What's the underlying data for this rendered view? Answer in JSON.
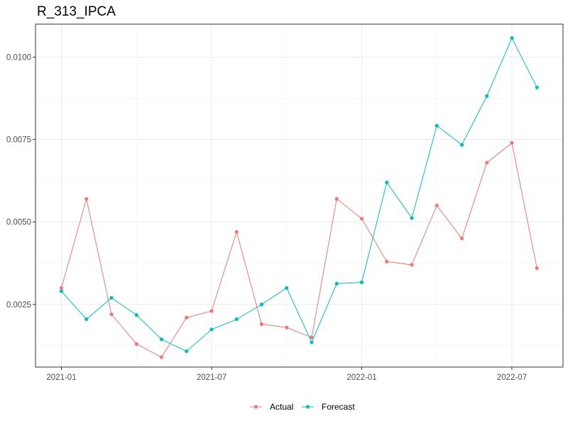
{
  "chart_data": {
    "type": "line",
    "title": "R_313_IPCA",
    "xlabel": "",
    "ylabel": "",
    "x": [
      "2021-01",
      "2021-02",
      "2021-03",
      "2021-04",
      "2021-05",
      "2021-06",
      "2021-07",
      "2021-08",
      "2021-09",
      "2021-10",
      "2021-11",
      "2021-12",
      "2022-01",
      "2022-02",
      "2022-03",
      "2022-04",
      "2022-05",
      "2022-06",
      "2022-07",
      "2022-08"
    ],
    "x_ticks": [
      "2021-01",
      "2021-07",
      "2022-01",
      "2022-07"
    ],
    "y_ticks": [
      0.0025,
      0.005,
      0.0075,
      0.01
    ],
    "y_tick_labels": [
      "0.0025",
      "0.0050",
      "0.0075",
      "0.0100"
    ],
    "ylim": [
      0.0006,
      0.011
    ],
    "grid": true,
    "legend_position": "bottom",
    "series": [
      {
        "name": "Actual",
        "color": "#f8766d",
        "values": [
          0.003,
          0.0057,
          0.0022,
          0.0013,
          0.0009,
          0.0021,
          0.0023,
          0.0047,
          0.0019,
          0.0018,
          0.0015,
          0.0057,
          0.0051,
          0.0038,
          0.0037,
          0.0055,
          0.0045,
          0.0068,
          0.0074,
          0.0036
        ]
      },
      {
        "name": "Forecast",
        "color": "#00bfc4",
        "values": [
          0.0029,
          0.00205,
          0.0027,
          0.00218,
          0.00144,
          0.00108,
          0.00174,
          0.00205,
          0.0025,
          0.003,
          0.00135,
          0.00313,
          0.00317,
          0.0062,
          0.00512,
          0.00792,
          0.00734,
          0.00882,
          0.01058,
          0.00908
        ]
      }
    ]
  }
}
